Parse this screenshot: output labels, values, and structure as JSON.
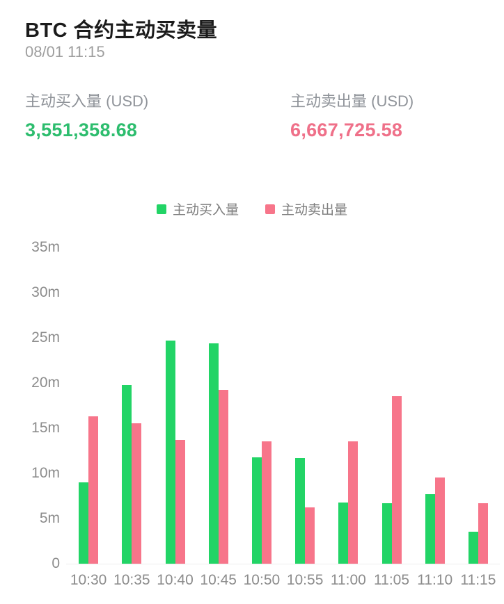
{
  "header": {
    "title": "BTC 合约主动买卖量",
    "timestamp": "08/01 11:15"
  },
  "stats": {
    "buy": {
      "label": "主动买入量 (USD)",
      "value": "3,551,358.68"
    },
    "sell": {
      "label": "主动卖出量 (USD)",
      "value": "6,667,725.58"
    }
  },
  "legend": {
    "buy_label": "主动买入量",
    "sell_label": "主动卖出量"
  },
  "colors": {
    "buy_bar": "#22d466",
    "sell_bar": "#f7758a",
    "buy_text": "#2dbd6e",
    "sell_text": "#ef7089",
    "axis_text": "#8c8c8c",
    "axis_line": "#ececec"
  },
  "chart_data": {
    "type": "bar",
    "title": "BTC 合约主动买卖量",
    "unit": "millions USD",
    "categories": [
      "10:30",
      "10:35",
      "10:40",
      "10:45",
      "10:50",
      "10:55",
      "11:00",
      "11:05",
      "11:10",
      "11:15"
    ],
    "series": [
      {
        "name": "主动买入量",
        "color": "#22d466",
        "values": [
          9.0,
          19.8,
          24.7,
          24.4,
          11.8,
          11.7,
          6.8,
          6.7,
          7.7,
          3.55
        ]
      },
      {
        "name": "主动卖出量",
        "color": "#f7758a",
        "values": [
          16.3,
          15.5,
          13.7,
          19.2,
          13.5,
          6.2,
          13.5,
          18.5,
          9.5,
          6.67
        ]
      }
    ],
    "xlabel": "",
    "ylabel": "",
    "ylim": [
      0,
      35
    ],
    "y_ticks": [
      {
        "label": "0",
        "value": 0
      },
      {
        "label": "5m",
        "value": 5
      },
      {
        "label": "10m",
        "value": 10
      },
      {
        "label": "15m",
        "value": 15
      },
      {
        "label": "20m",
        "value": 20
      },
      {
        "label": "25m",
        "value": 25
      },
      {
        "label": "30m",
        "value": 30
      },
      {
        "label": "35m",
        "value": 35
      }
    ],
    "grid": false,
    "legend_position": "top-center"
  }
}
